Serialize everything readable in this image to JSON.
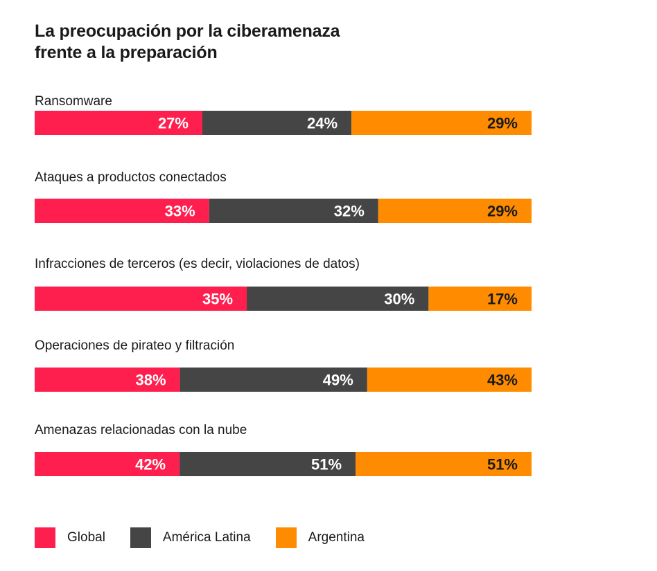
{
  "title": {
    "line1": "La preocupación por la ciberamenaza",
    "line2": "frente a la preparación"
  },
  "colors": {
    "Global": "#ff1f4f",
    "América Latina": "#454545",
    "Argentina": "#ff8c00",
    "label_light": "#ffffff",
    "label_dark": "#1a1a1a"
  },
  "chart_data": {
    "type": "bar",
    "orientation": "horizontal",
    "stacked": true,
    "title": "La preocupación por la ciberamenaza frente a la preparación",
    "categories": [
      "Ransomware",
      "Ataques a productos conectados",
      "Infracciones de terceros (es decir, violaciones de datos)",
      "Operaciones de pirateo y filtración",
      "Amenazas relacionadas con la nube"
    ],
    "series": [
      {
        "name": "Global",
        "values": [
          27,
          33,
          35,
          38,
          42
        ],
        "labels": [
          "27%",
          "33%",
          "35%",
          "38%",
          "42%"
        ]
      },
      {
        "name": "América Latina",
        "values": [
          24,
          32,
          30,
          49,
          51
        ],
        "labels": [
          "24%",
          "32%",
          "30%",
          "49%",
          "51%"
        ]
      },
      {
        "name": "Argentina",
        "values": [
          29,
          29,
          17,
          43,
          51
        ],
        "labels": [
          "29%",
          "29%",
          "17%",
          "43%",
          "51%"
        ]
      }
    ],
    "legend_position": "bottom-left",
    "grid": false
  }
}
